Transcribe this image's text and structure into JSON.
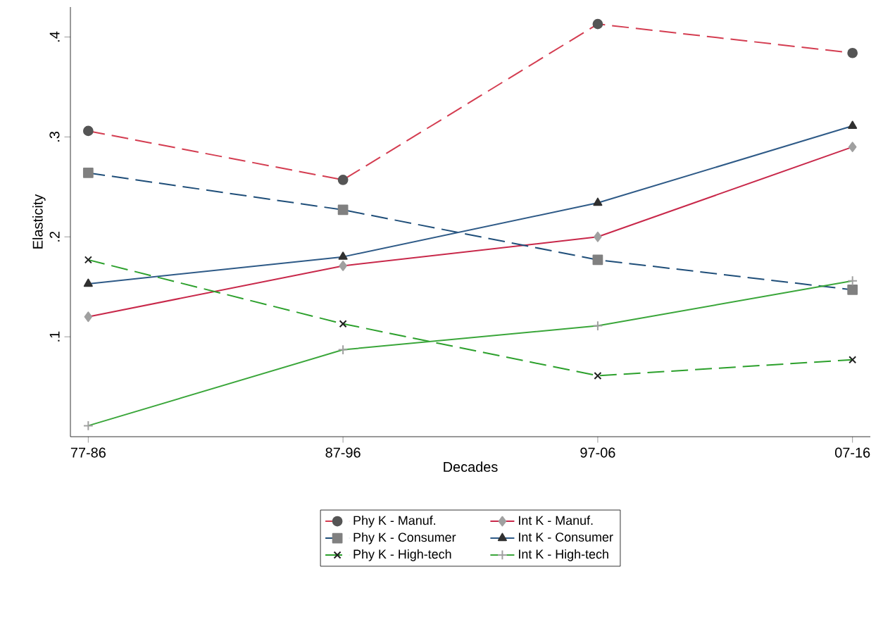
{
  "chart_data": {
    "type": "line",
    "xlabel": "Decades",
    "ylabel": "Elasticity",
    "categories": [
      "77-86",
      "87-96",
      "97-06",
      "07-16"
    ],
    "ylim": [
      0,
      0.43
    ],
    "yticks": [
      {
        "value": 0.1,
        "label": ".1"
      },
      {
        "value": 0.2,
        "label": ".2"
      },
      {
        "value": 0.3,
        "label": ".3"
      },
      {
        "value": 0.4,
        "label": ".4"
      }
    ],
    "legend": "bottom",
    "grid": false,
    "series": [
      {
        "name": "Phy K - Manuf.",
        "color": "#d43d51",
        "line_style": "dashed",
        "marker": "circle",
        "values": [
          0.306,
          0.257,
          0.413,
          0.384
        ]
      },
      {
        "name": "Int K - Manuf.",
        "color": "#c8284a",
        "line_style": "solid",
        "marker": "diamond",
        "values": [
          0.12,
          0.171,
          0.2,
          0.29
        ]
      },
      {
        "name": "Phy K - Consumer",
        "color": "#1f4e79",
        "line_style": "dashed",
        "marker": "square",
        "values": [
          0.264,
          0.227,
          0.177,
          0.147
        ]
      },
      {
        "name": "Int K - Consumer",
        "color": "#2e5a87",
        "line_style": "solid",
        "marker": "triangle",
        "values": [
          0.153,
          0.18,
          0.234,
          0.311
        ]
      },
      {
        "name": "Phy K - High-tech",
        "color": "#2ca02c",
        "line_style": "dashed",
        "marker": "cross",
        "values": [
          0.177,
          0.113,
          0.061,
          0.077
        ]
      },
      {
        "name": "Int K - High-tech",
        "color": "#3aa63a",
        "line_style": "solid",
        "marker": "plus",
        "values": [
          0.011,
          0.087,
          0.111,
          0.156
        ]
      }
    ]
  }
}
